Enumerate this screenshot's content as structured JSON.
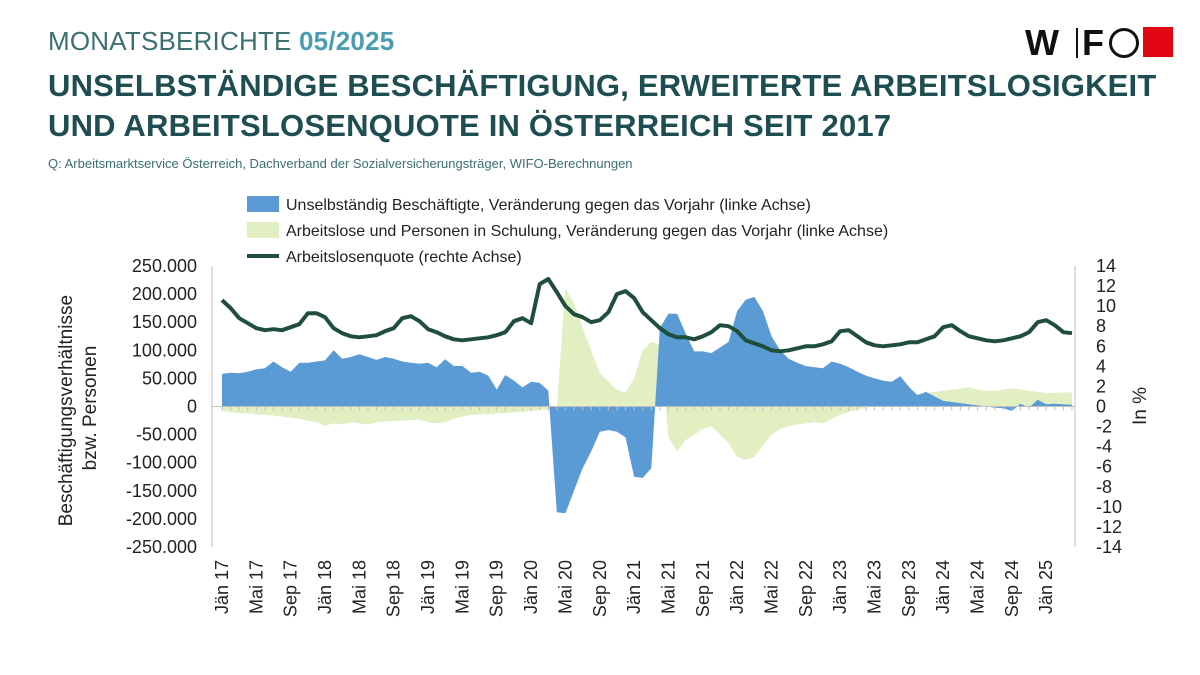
{
  "header": {
    "series_label": "MONATSBERICHTE",
    "issue": "05/2025",
    "title_line1": "UNSELBSTÄNDIGE BESCHÄFTIGUNG, ERWEITERTE ARBEITSLOSIGKEIT",
    "title_line2": "UND ARBEITSLOSENQUOTE IN ÖSTERREICH SEIT 2017",
    "source": "Q: Arbeitsmarktservice Österreich, Dachverband der Sozialversicherungsträger, WIFO-Berechnungen"
  },
  "logo": {
    "text": "WIFO",
    "brand_red": "#e30613"
  },
  "chart_data": {
    "type": "area",
    "legend": [
      "Unselbständig Beschäftigte, Veränderung gegen das Vorjahr (linke Achse)",
      "Arbeitslose und Personen in Schulung, Veränderung gegen das Vorjahr (linke Achse)",
      "Arbeitslosenquote (rechte Achse)"
    ],
    "ylabel_left": "Beschäftigungsverhältnisse bzw. Personen",
    "ylabel_left_lines": [
      "Beschäftigungsverhältnisse",
      "bzw. Personen"
    ],
    "ylabel_right": "In %",
    "ylim_left": [
      -250000,
      250000
    ],
    "ylim_right": [
      -14,
      14
    ],
    "yticks_left": [
      "250.000",
      "200.000",
      "150.000",
      "100.000",
      "50.000",
      "0",
      "-50.000",
      "-100.000",
      "-150.000",
      "-200.000",
      "-250.000"
    ],
    "yticks_right": [
      "14",
      "12",
      "10",
      "8",
      "6",
      "4",
      "2",
      "0",
      "-2",
      "-4",
      "-6",
      "-8",
      "-10",
      "-12",
      "-14"
    ],
    "xtick_labels": [
      "Jän 17",
      "Mai 17",
      "Sep 17",
      "Jän 18",
      "Mai 18",
      "Sep 18",
      "Jän 19",
      "Mai 19",
      "Sep 19",
      "Jän 20",
      "Mai 20",
      "Sep 20",
      "Jän 21",
      "Mai 21",
      "Sep 21",
      "Jän 22",
      "Mai 22",
      "Sep 22",
      "Jän 23",
      "Mai 23",
      "Sep 23",
      "Jän 24",
      "Mai 24",
      "Sep 24",
      "Jän 25"
    ],
    "x_start": "Jän 17",
    "n_months": 100,
    "colors": {
      "employment": "#5b9bd5",
      "unemployed": "#e2efc2",
      "rate": "#1f4e3d",
      "axis": "#bfbfbf"
    },
    "series": [
      {
        "name": "Unselbständig Beschäftigte, Veränderung gegen das Vorjahr",
        "axis": "left",
        "values": [
          58000,
          60000,
          59000,
          62000,
          66000,
          68000,
          80000,
          70000,
          62000,
          78000,
          78000,
          80000,
          82000,
          100000,
          85000,
          88000,
          93000,
          88000,
          83000,
          88000,
          85000,
          80000,
          78000,
          76000,
          78000,
          70000,
          84000,
          72000,
          72000,
          60000,
          62000,
          55000,
          30000,
          56000,
          46000,
          34000,
          44000,
          42000,
          28000,
          -188000,
          -190000,
          -150000,
          -110000,
          -80000,
          -45000,
          -42000,
          -45000,
          -55000,
          -125000,
          -127000,
          -110000,
          140000,
          165000,
          165000,
          130000,
          98000,
          98000,
          95000,
          105000,
          115000,
          170000,
          190000,
          195000,
          170000,
          125000,
          100000,
          85000,
          78000,
          72000,
          70000,
          68000,
          80000,
          76000,
          70000,
          62000,
          55000,
          50000,
          46000,
          44000,
          54000,
          35000,
          20000,
          26000,
          18000,
          10000,
          8000,
          6000,
          4000,
          2000,
          0,
          -2000,
          -3000,
          -8000,
          5000,
          -2000,
          12000,
          4000,
          5000,
          4000,
          3000
        ]
      },
      {
        "name": "Arbeitslose und Personen in Schulung, Veränderung gegen das Vorjahr",
        "axis": "left",
        "values": [
          -8000,
          -10000,
          -12000,
          -12000,
          -14000,
          -15000,
          -16000,
          -18000,
          -20000,
          -22000,
          -25000,
          -28000,
          -34000,
          -30000,
          -32000,
          -28000,
          -30000,
          -32000,
          -28000,
          -27000,
          -26000,
          -25000,
          -24000,
          -23000,
          -28000,
          -30000,
          -28000,
          -22000,
          -18000,
          -15000,
          -14000,
          -14000,
          -12000,
          -12000,
          -10000,
          -10000,
          -8000,
          -6000,
          -5000,
          -2000,
          210000,
          185000,
          140000,
          100000,
          60000,
          45000,
          30000,
          25000,
          50000,
          100000,
          115000,
          110000,
          -55000,
          -80000,
          -60000,
          -50000,
          -40000,
          -35000,
          -50000,
          -65000,
          -90000,
          -95000,
          -90000,
          -70000,
          -50000,
          -40000,
          -35000,
          -32000,
          -30000,
          -28000,
          -30000,
          -22000,
          -15000,
          -10000,
          -6000,
          -2000,
          2000,
          6000,
          10000,
          14000,
          18000,
          22000,
          24000,
          26000,
          28000,
          30000,
          32000,
          34000,
          30000,
          28000,
          28000,
          30000,
          32000,
          30000,
          28000,
          26000,
          24000,
          24000,
          25000,
          25000
        ]
      },
      {
        "name": "Arbeitslosenquote",
        "axis": "right",
        "values": [
          10.6,
          9.8,
          8.8,
          8.3,
          7.8,
          7.6,
          7.7,
          7.6,
          7.9,
          8.2,
          9.3,
          9.3,
          8.9,
          7.8,
          7.3,
          7.0,
          6.9,
          7.0,
          7.1,
          7.5,
          7.8,
          8.8,
          9.0,
          8.5,
          7.7,
          7.4,
          7.0,
          6.7,
          6.6,
          6.7,
          6.8,
          6.9,
          7.1,
          7.4,
          8.5,
          8.8,
          8.3,
          12.2,
          12.7,
          11.4,
          10.0,
          9.2,
          8.9,
          8.4,
          8.6,
          9.4,
          11.2,
          11.5,
          10.8,
          9.4,
          8.6,
          7.8,
          7.2,
          6.9,
          6.9,
          6.7,
          7.0,
          7.4,
          8.1,
          8.0,
          7.5,
          6.6,
          6.3,
          6.0,
          5.6,
          5.5,
          5.6,
          5.8,
          6.0,
          6.0,
          6.2,
          6.5,
          7.5,
          7.6,
          7.0,
          6.4,
          6.1,
          6.0,
          6.1,
          6.2,
          6.4,
          6.4,
          6.7,
          7.0,
          7.9,
          8.1,
          7.5,
          7.0,
          6.8,
          6.6,
          6.5,
          6.6,
          6.8,
          7.0,
          7.4,
          8.4,
          8.6,
          8.1,
          7.4,
          7.3
        ]
      }
    ]
  }
}
